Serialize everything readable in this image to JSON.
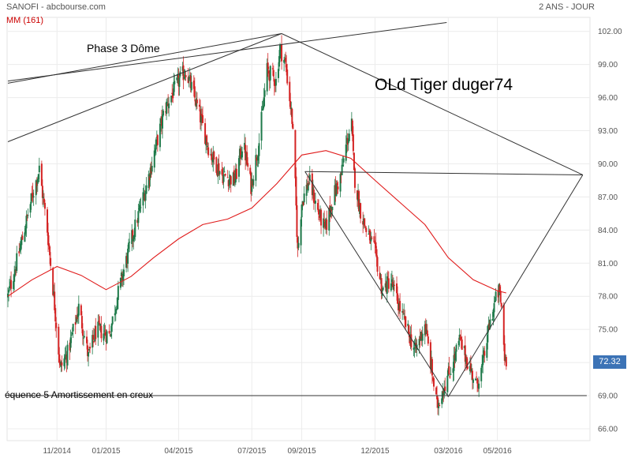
{
  "header": {
    "title": "SANOFI - abcbourse.com",
    "period": "2 ANS - JOUR",
    "indicator": "MM (161)"
  },
  "annotations": {
    "phase": "Phase 3 Dôme",
    "author": "OLd Tiger duger74",
    "sequence": "équence 5 Amortissement en creux"
  },
  "last_price": "72.32",
  "colors": {
    "up": "#1e7a4a",
    "down": "#d42424",
    "ma": "#e01b1b",
    "trendline": "#333333",
    "badge": "#3c73b6"
  },
  "chart_data": {
    "type": "candlestick",
    "title": "SANOFI - abcbourse.com",
    "ylim": [
      65,
      103
    ],
    "y_ticks": [
      "66.00",
      "69.00",
      "72.00",
      "75.00",
      "78.00",
      "81.00",
      "84.00",
      "87.00",
      "90.00",
      "93.00",
      "96.00",
      "99.00",
      "102.00"
    ],
    "x_ticks": [
      "11/2014",
      "01/2015",
      "04/2015",
      "07/2015",
      "09/2015",
      "12/2015",
      "03/2016",
      "05/2016"
    ],
    "price_anchors": [
      [
        "2014-09-01",
        78.0
      ],
      [
        "2014-09-15",
        82.0
      ],
      [
        "2014-10-01",
        87.0
      ],
      [
        "2014-10-10",
        89.5
      ],
      [
        "2014-10-20",
        84.0
      ],
      [
        "2014-10-28",
        78.0
      ],
      [
        "2014-11-05",
        71.5
      ],
      [
        "2014-11-15",
        73.0
      ],
      [
        "2014-11-28",
        77.0
      ],
      [
        "2014-12-10",
        72.5
      ],
      [
        "2014-12-20",
        75.0
      ],
      [
        "2015-01-05",
        74.5
      ],
      [
        "2015-01-15",
        78.0
      ],
      [
        "2015-02-01",
        83.0
      ],
      [
        "2015-02-20",
        88.0
      ],
      [
        "2015-03-15",
        95.0
      ],
      [
        "2015-04-01",
        97.5
      ],
      [
        "2015-04-10",
        98.5
      ],
      [
        "2015-04-25",
        95.0
      ],
      [
        "2015-05-10",
        91.0
      ],
      [
        "2015-05-25",
        89.0
      ],
      [
        "2015-06-10",
        88.5
      ],
      [
        "2015-06-20",
        92.0
      ],
      [
        "2015-06-30",
        88.0
      ],
      [
        "2015-07-10",
        92.0
      ],
      [
        "2015-07-20",
        98.5
      ],
      [
        "2015-07-31",
        97.5
      ],
      [
        "2015-08-05",
        100.5
      ],
      [
        "2015-08-12",
        99.0
      ],
      [
        "2015-08-20",
        94.0
      ],
      [
        "2015-08-24",
        88.0
      ],
      [
        "2015-08-27",
        82.0
      ],
      [
        "2015-09-01",
        86.5
      ],
      [
        "2015-09-10",
        88.5
      ],
      [
        "2015-09-22",
        85.5
      ],
      [
        "2015-09-30",
        84.0
      ],
      [
        "2015-10-10",
        87.0
      ],
      [
        "2015-10-20",
        89.0
      ],
      [
        "2015-10-27",
        92.0
      ],
      [
        "2015-11-02",
        93.5
      ],
      [
        "2015-11-05",
        89.0
      ],
      [
        "2015-11-12",
        86.0
      ],
      [
        "2015-11-20",
        84.0
      ],
      [
        "2015-12-01",
        82.0
      ],
      [
        "2015-12-10",
        78.5
      ],
      [
        "2015-12-20",
        79.5
      ],
      [
        "2016-01-05",
        76.0
      ],
      [
        "2016-01-20",
        73.0
      ],
      [
        "2016-02-01",
        75.5
      ],
      [
        "2016-02-10",
        71.0
      ],
      [
        "2016-02-16",
        68.0
      ],
      [
        "2016-02-25",
        70.0
      ],
      [
        "2016-03-05",
        71.5
      ],
      [
        "2016-03-15",
        74.0
      ],
      [
        "2016-03-25",
        72.0
      ],
      [
        "2016-04-05",
        70.0
      ],
      [
        "2016-04-12",
        71.5
      ],
      [
        "2016-04-20",
        75.0
      ],
      [
        "2016-04-28",
        77.5
      ],
      [
        "2016-05-03",
        78.5
      ],
      [
        "2016-05-06",
        77.0
      ],
      [
        "2016-05-10",
        72.5
      ],
      [
        "2016-05-12",
        72.32
      ]
    ],
    "moving_average_161": [
      [
        "2014-09-01",
        78.0
      ],
      [
        "2014-10-01",
        79.5
      ],
      [
        "2014-11-01",
        80.7
      ],
      [
        "2014-12-01",
        79.9
      ],
      [
        "2015-01-01",
        78.6
      ],
      [
        "2015-02-01",
        79.8
      ],
      [
        "2015-03-01",
        81.5
      ],
      [
        "2015-04-01",
        83.2
      ],
      [
        "2015-05-01",
        84.5
      ],
      [
        "2015-06-01",
        85.0
      ],
      [
        "2015-07-01",
        86.0
      ],
      [
        "2015-08-01",
        88.2
      ],
      [
        "2015-09-01",
        90.8
      ],
      [
        "2015-10-01",
        91.2
      ],
      [
        "2015-11-01",
        90.5
      ],
      [
        "2015-12-01",
        88.5
      ],
      [
        "2016-01-01",
        86.5
      ],
      [
        "2016-02-01",
        84.5
      ],
      [
        "2016-03-01",
        81.5
      ],
      [
        "2016-04-01",
        79.5
      ],
      [
        "2016-05-01",
        78.5
      ],
      [
        "2016-05-12",
        78.3
      ]
    ],
    "trendlines": [
      {
        "from": [
          "2014-09-01",
          97.5
        ],
        "to": [
          "2016-02-28",
          102.8
        ]
      },
      {
        "from": [
          "2014-09-01",
          92.0
        ],
        "to": [
          "2015-08-07",
          101.8
        ]
      },
      {
        "from": [
          "2014-09-01",
          97.3
        ],
        "to": [
          "2015-08-07",
          101.8
        ]
      },
      {
        "from": [
          "2015-08-07",
          101.8
        ],
        "to": [
          "2016-08-15",
          89.0
        ]
      },
      {
        "from": [
          "2015-09-05",
          89.3
        ],
        "to": [
          "2016-08-15",
          89.0
        ]
      },
      {
        "from": [
          "2015-09-05",
          89.3
        ],
        "to": [
          "2016-03-01",
          68.9
        ]
      },
      {
        "from": [
          "2016-03-01",
          68.9
        ],
        "to": [
          "2016-08-15",
          89.0
        ]
      },
      {
        "from": [
          "2014-09-01",
          69.0
        ],
        "to": [
          "2016-08-20",
          69.0
        ]
      }
    ]
  }
}
